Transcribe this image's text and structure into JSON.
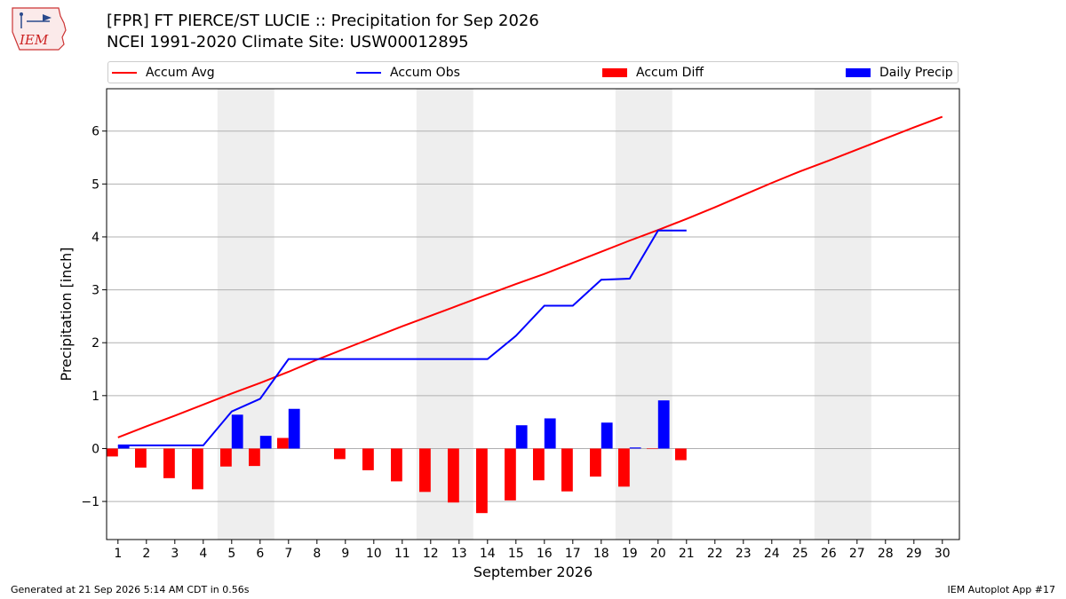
{
  "header": {
    "title_line1": "[FPR] FT PIERCE/ST LUCIE :: Precipitation for Sep 2026",
    "title_line2": "NCEI 1991-2020 Climate Site: USW00012895",
    "logo_text": "IEM"
  },
  "legend": {
    "items": [
      "Accum Avg",
      "Accum Obs",
      "Accum Diff",
      "Daily Precip"
    ]
  },
  "colors": {
    "accum_avg": "#ff0000",
    "accum_obs": "#0000ff",
    "accum_diff": "#ff0000",
    "daily_precip": "#0000ff",
    "weekend_shade": "#eeeeee",
    "grid": "#b0b0b0"
  },
  "chart_data": {
    "type": "bar",
    "xlabel": "September 2026",
    "ylabel": "Precipitation [inch]",
    "xlim": [
      0.6,
      30.6
    ],
    "ylim": [
      -1.72,
      6.8
    ],
    "yticks": [
      -1,
      0,
      1,
      2,
      3,
      4,
      5,
      6
    ],
    "ytick_labels": [
      "−1",
      "0",
      "1",
      "2",
      "3",
      "4",
      "5",
      "6"
    ],
    "x_ticks": [
      1,
      2,
      3,
      4,
      5,
      6,
      7,
      8,
      9,
      10,
      11,
      12,
      13,
      14,
      15,
      16,
      17,
      18,
      19,
      20,
      21,
      22,
      23,
      24,
      25,
      26,
      27,
      28,
      29,
      30
    ],
    "grid": "horizontal",
    "legend_position": "top",
    "weekend_spans": [
      [
        4.5,
        6.5
      ],
      [
        11.5,
        13.5
      ],
      [
        18.5,
        20.5
      ],
      [
        25.5,
        27.5
      ]
    ],
    "series": [
      {
        "name": "Accum Avg",
        "kind": "line",
        "x": [
          1,
          2,
          3,
          4,
          5,
          6,
          7,
          8,
          9,
          10,
          11,
          12,
          13,
          14,
          15,
          16,
          17,
          18,
          19,
          20,
          21,
          22,
          23,
          24,
          25,
          26,
          27,
          28,
          29,
          30
        ],
        "values": [
          0.21,
          0.42,
          0.62,
          0.83,
          1.04,
          1.24,
          1.45,
          1.68,
          1.89,
          2.1,
          2.31,
          2.51,
          2.71,
          2.91,
          3.11,
          3.3,
          3.51,
          3.72,
          3.93,
          4.13,
          4.34,
          4.56,
          4.79,
          5.02,
          5.24,
          5.44,
          5.65,
          5.86,
          6.07,
          6.27
        ]
      },
      {
        "name": "Accum Obs",
        "kind": "line",
        "x": [
          1,
          2,
          3,
          4,
          5,
          6,
          7,
          8,
          9,
          10,
          11,
          12,
          13,
          14,
          15,
          16,
          17,
          18,
          19,
          20,
          21
        ],
        "values": [
          0.06,
          0.06,
          0.06,
          0.06,
          0.7,
          0.94,
          1.69,
          1.69,
          1.69,
          1.69,
          1.69,
          1.69,
          1.69,
          1.69,
          2.13,
          2.7,
          2.7,
          3.19,
          3.21,
          4.12,
          4.12
        ]
      },
      {
        "name": "Accum Diff",
        "kind": "bar",
        "x": [
          1,
          2,
          3,
          4,
          5,
          6,
          7,
          8,
          9,
          10,
          11,
          12,
          13,
          14,
          15,
          16,
          17,
          18,
          19,
          20,
          21
        ],
        "values": [
          -0.15,
          -0.36,
          -0.56,
          -0.77,
          -0.34,
          -0.33,
          0.2,
          0.0,
          -0.2,
          -0.41,
          -0.62,
          -0.82,
          -1.02,
          -1.22,
          -0.98,
          -0.6,
          -0.81,
          -0.53,
          -0.72,
          -0.01,
          -0.22
        ]
      },
      {
        "name": "Daily Precip",
        "kind": "bar",
        "x": [
          1,
          2,
          3,
          4,
          5,
          6,
          7,
          8,
          9,
          10,
          11,
          12,
          13,
          14,
          15,
          16,
          17,
          18,
          19,
          20,
          21
        ],
        "values": [
          0.06,
          0.0,
          0.0,
          0.0,
          0.64,
          0.24,
          0.75,
          0.0,
          0.0,
          0.0,
          0.0,
          0.0,
          0.0,
          0.0,
          0.44,
          0.57,
          0.0,
          0.49,
          0.02,
          0.91,
          0.0
        ]
      }
    ]
  },
  "footer": {
    "left": "Generated at 21 Sep 2026 5:14 AM CDT in 0.56s",
    "right": "IEM Autoplot App #17"
  }
}
